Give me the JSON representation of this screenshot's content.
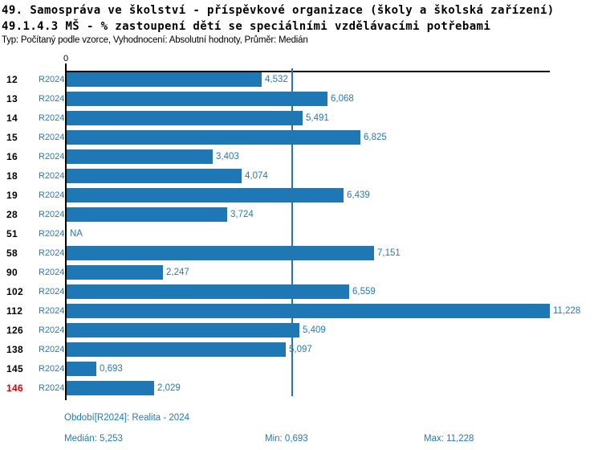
{
  "header": {
    "title_line1": "49. Samospráva ve školství - příspěvkové organizace (školy a školská zařízení)",
    "title_line2": "49.1.4.3 MŠ - % zastoupení dětí se speciálními vzdělávacími potřebami",
    "subtitle": "Typ: Počítaný podle vzorce, Vyhodnocení: Absolutní hodnoty, Průměr: Medián"
  },
  "chart_data": {
    "type": "bar",
    "orientation": "horizontal",
    "title": "49.1.4.3 MŠ - % zastoupení dětí se speciálními vzdělávacími potřebami",
    "axis_zero_label": "0",
    "series_label": "R2024",
    "categories": [
      "12",
      "13",
      "14",
      "15",
      "16",
      "18",
      "19",
      "28",
      "51",
      "58",
      "90",
      "102",
      "112",
      "126",
      "138",
      "145",
      "146"
    ],
    "values": [
      4.532,
      6.068,
      5.491,
      6.825,
      3.403,
      4.074,
      6.439,
      3.724,
      null,
      7.151,
      2.247,
      6.559,
      11.228,
      5.409,
      5.097,
      0.693,
      2.029
    ],
    "value_labels": [
      "4,532",
      "6,068",
      "5,491",
      "6,825",
      "3,403",
      "4,074",
      "6,439",
      "3,724",
      "NA",
      "7,151",
      "2,247",
      "6,559",
      "11,228",
      "5,409",
      "5,097",
      "0,693",
      "2,029"
    ],
    "na_label": "NA",
    "highlighted_category": "146",
    "median_value": 5.253,
    "xlim": [
      0,
      11.228
    ],
    "legend_position": "none",
    "grid": "off"
  },
  "footer": {
    "period": "Období[R2024]: Realita - 2024",
    "median": "Medián: 5,253",
    "min": "Min: 0,693",
    "max": "Max: 11,228"
  },
  "colors": {
    "bar": "#1f77b4",
    "blue_text": "#2479b5",
    "median_line": "#1f77b4",
    "highlight_text": "#dd0000",
    "axis": "#000000"
  }
}
